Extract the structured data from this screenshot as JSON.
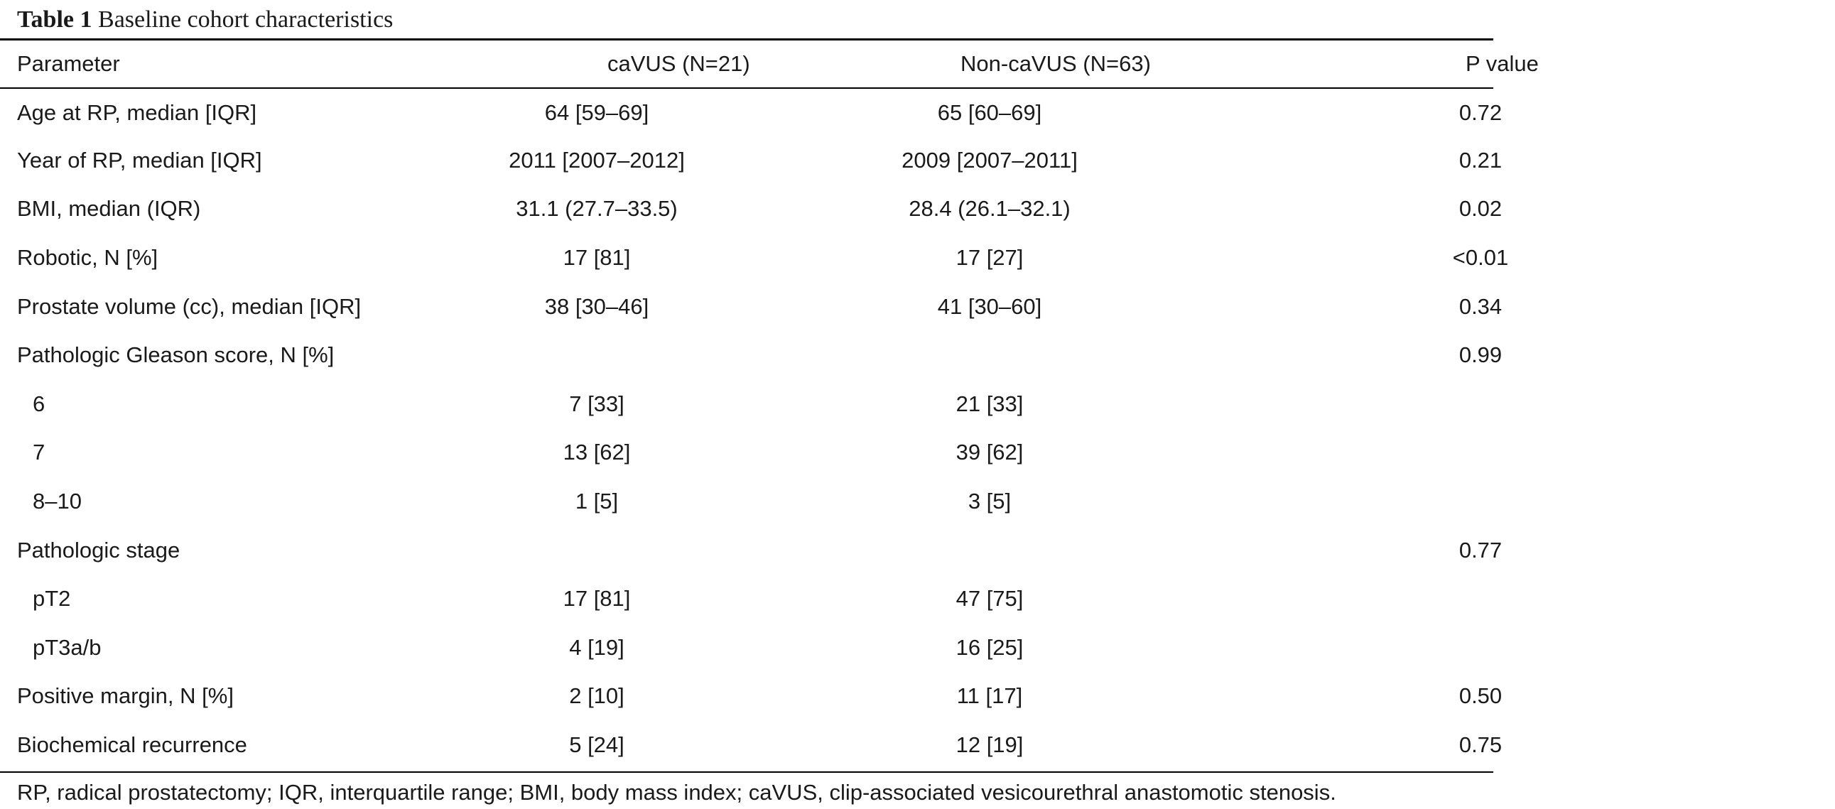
{
  "caption": {
    "label": "Table 1",
    "title": "Baseline cohort characteristics"
  },
  "table": {
    "headers": [
      "Parameter",
      "caVUS (N=21)",
      "Non-caVUS (N=63)",
      "P value"
    ],
    "rows": [
      {
        "parameter": "Age at RP, median [IQR]",
        "cavus": "64 [59–69]",
        "noncavus": "65 [60–69]",
        "p": "0.72",
        "indent": false
      },
      {
        "parameter": "Year of RP, median [IQR]",
        "cavus": "2011 [2007–2012]",
        "noncavus": "2009 [2007–2011]",
        "p": "0.21",
        "indent": false
      },
      {
        "parameter": "BMI, median (IQR)",
        "cavus": "31.1 (27.7–33.5)",
        "noncavus": "28.4 (26.1–32.1)",
        "p": "0.02",
        "indent": false
      },
      {
        "parameter": "Robotic, N [%]",
        "cavus": "17 [81]",
        "noncavus": "17 [27]",
        "p": "<0.01",
        "indent": false
      },
      {
        "parameter": "Prostate volume (cc), median [IQR]",
        "cavus": "38 [30–46]",
        "noncavus": "41 [30–60]",
        "p": "0.34",
        "indent": false
      },
      {
        "parameter": "Pathologic Gleason score, N [%]",
        "cavus": "",
        "noncavus": "",
        "p": "0.99",
        "indent": false
      },
      {
        "parameter": "6",
        "cavus": "7 [33]",
        "noncavus": "21 [33]",
        "p": "",
        "indent": true
      },
      {
        "parameter": "7",
        "cavus": "13 [62]",
        "noncavus": "39 [62]",
        "p": "",
        "indent": true
      },
      {
        "parameter": "8–10",
        "cavus": "1 [5]",
        "noncavus": "3 [5]",
        "p": "",
        "indent": true
      },
      {
        "parameter": "Pathologic stage",
        "cavus": "",
        "noncavus": "",
        "p": "0.77",
        "indent": false
      },
      {
        "parameter": "pT2",
        "cavus": "17 [81]",
        "noncavus": "47 [75]",
        "p": "",
        "indent": true
      },
      {
        "parameter": "pT3a/b",
        "cavus": "4 [19]",
        "noncavus": "16 [25]",
        "p": "",
        "indent": true
      },
      {
        "parameter": "Positive margin, N [%]",
        "cavus": "2 [10]",
        "noncavus": "11 [17]",
        "p": "0.50",
        "indent": false
      },
      {
        "parameter": "Biochemical recurrence",
        "cavus": "5 [24]",
        "noncavus": "12 [19]",
        "p": "0.75",
        "indent": false
      }
    ]
  },
  "footnote": "RP, radical prostatectomy; IQR, interquartile range; BMI, body mass index; caVUS, clip-associated vesicourethral anastomotic stenosis."
}
